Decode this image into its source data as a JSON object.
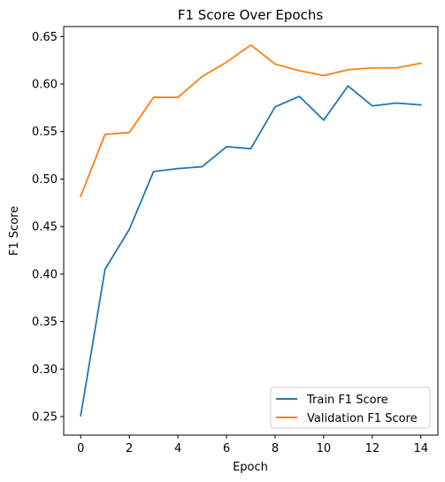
{
  "chart_data": {
    "type": "line",
    "title": "F1 Score Over Epochs",
    "xlabel": "Epoch",
    "ylabel": "F1 Score",
    "x": [
      0,
      1,
      2,
      3,
      4,
      5,
      6,
      7,
      8,
      9,
      10,
      11,
      12,
      13,
      14
    ],
    "xlim": [
      -0.7,
      14.7
    ],
    "ylim": [
      0.2305,
      0.6605
    ],
    "xticks": [
      0,
      2,
      4,
      6,
      8,
      10,
      12,
      14
    ],
    "yticks": [
      0.25,
      0.3,
      0.35,
      0.4,
      0.45,
      0.5,
      0.55,
      0.6,
      0.65
    ],
    "xtick_labels": [
      "0",
      "2",
      "4",
      "6",
      "8",
      "10",
      "12",
      "14"
    ],
    "ytick_labels": [
      "0.25",
      "0.30",
      "0.35",
      "0.40",
      "0.45",
      "0.50",
      "0.55",
      "0.60",
      "0.65"
    ],
    "grid": false,
    "legend_position": "lower-right",
    "series": [
      {
        "name": "Train F1 Score",
        "color": "#1f77b4",
        "values": [
          0.251,
          0.405,
          0.447,
          0.508,
          0.511,
          0.513,
          0.534,
          0.532,
          0.576,
          0.587,
          0.562,
          0.598,
          0.577,
          0.58,
          0.578
        ]
      },
      {
        "name": "Validation F1 Score",
        "color": "#ff7f0e",
        "values": [
          0.482,
          0.547,
          0.549,
          0.586,
          0.586,
          0.608,
          0.623,
          0.641,
          0.621,
          0.614,
          0.609,
          0.615,
          0.617,
          0.617,
          0.622
        ]
      }
    ]
  }
}
